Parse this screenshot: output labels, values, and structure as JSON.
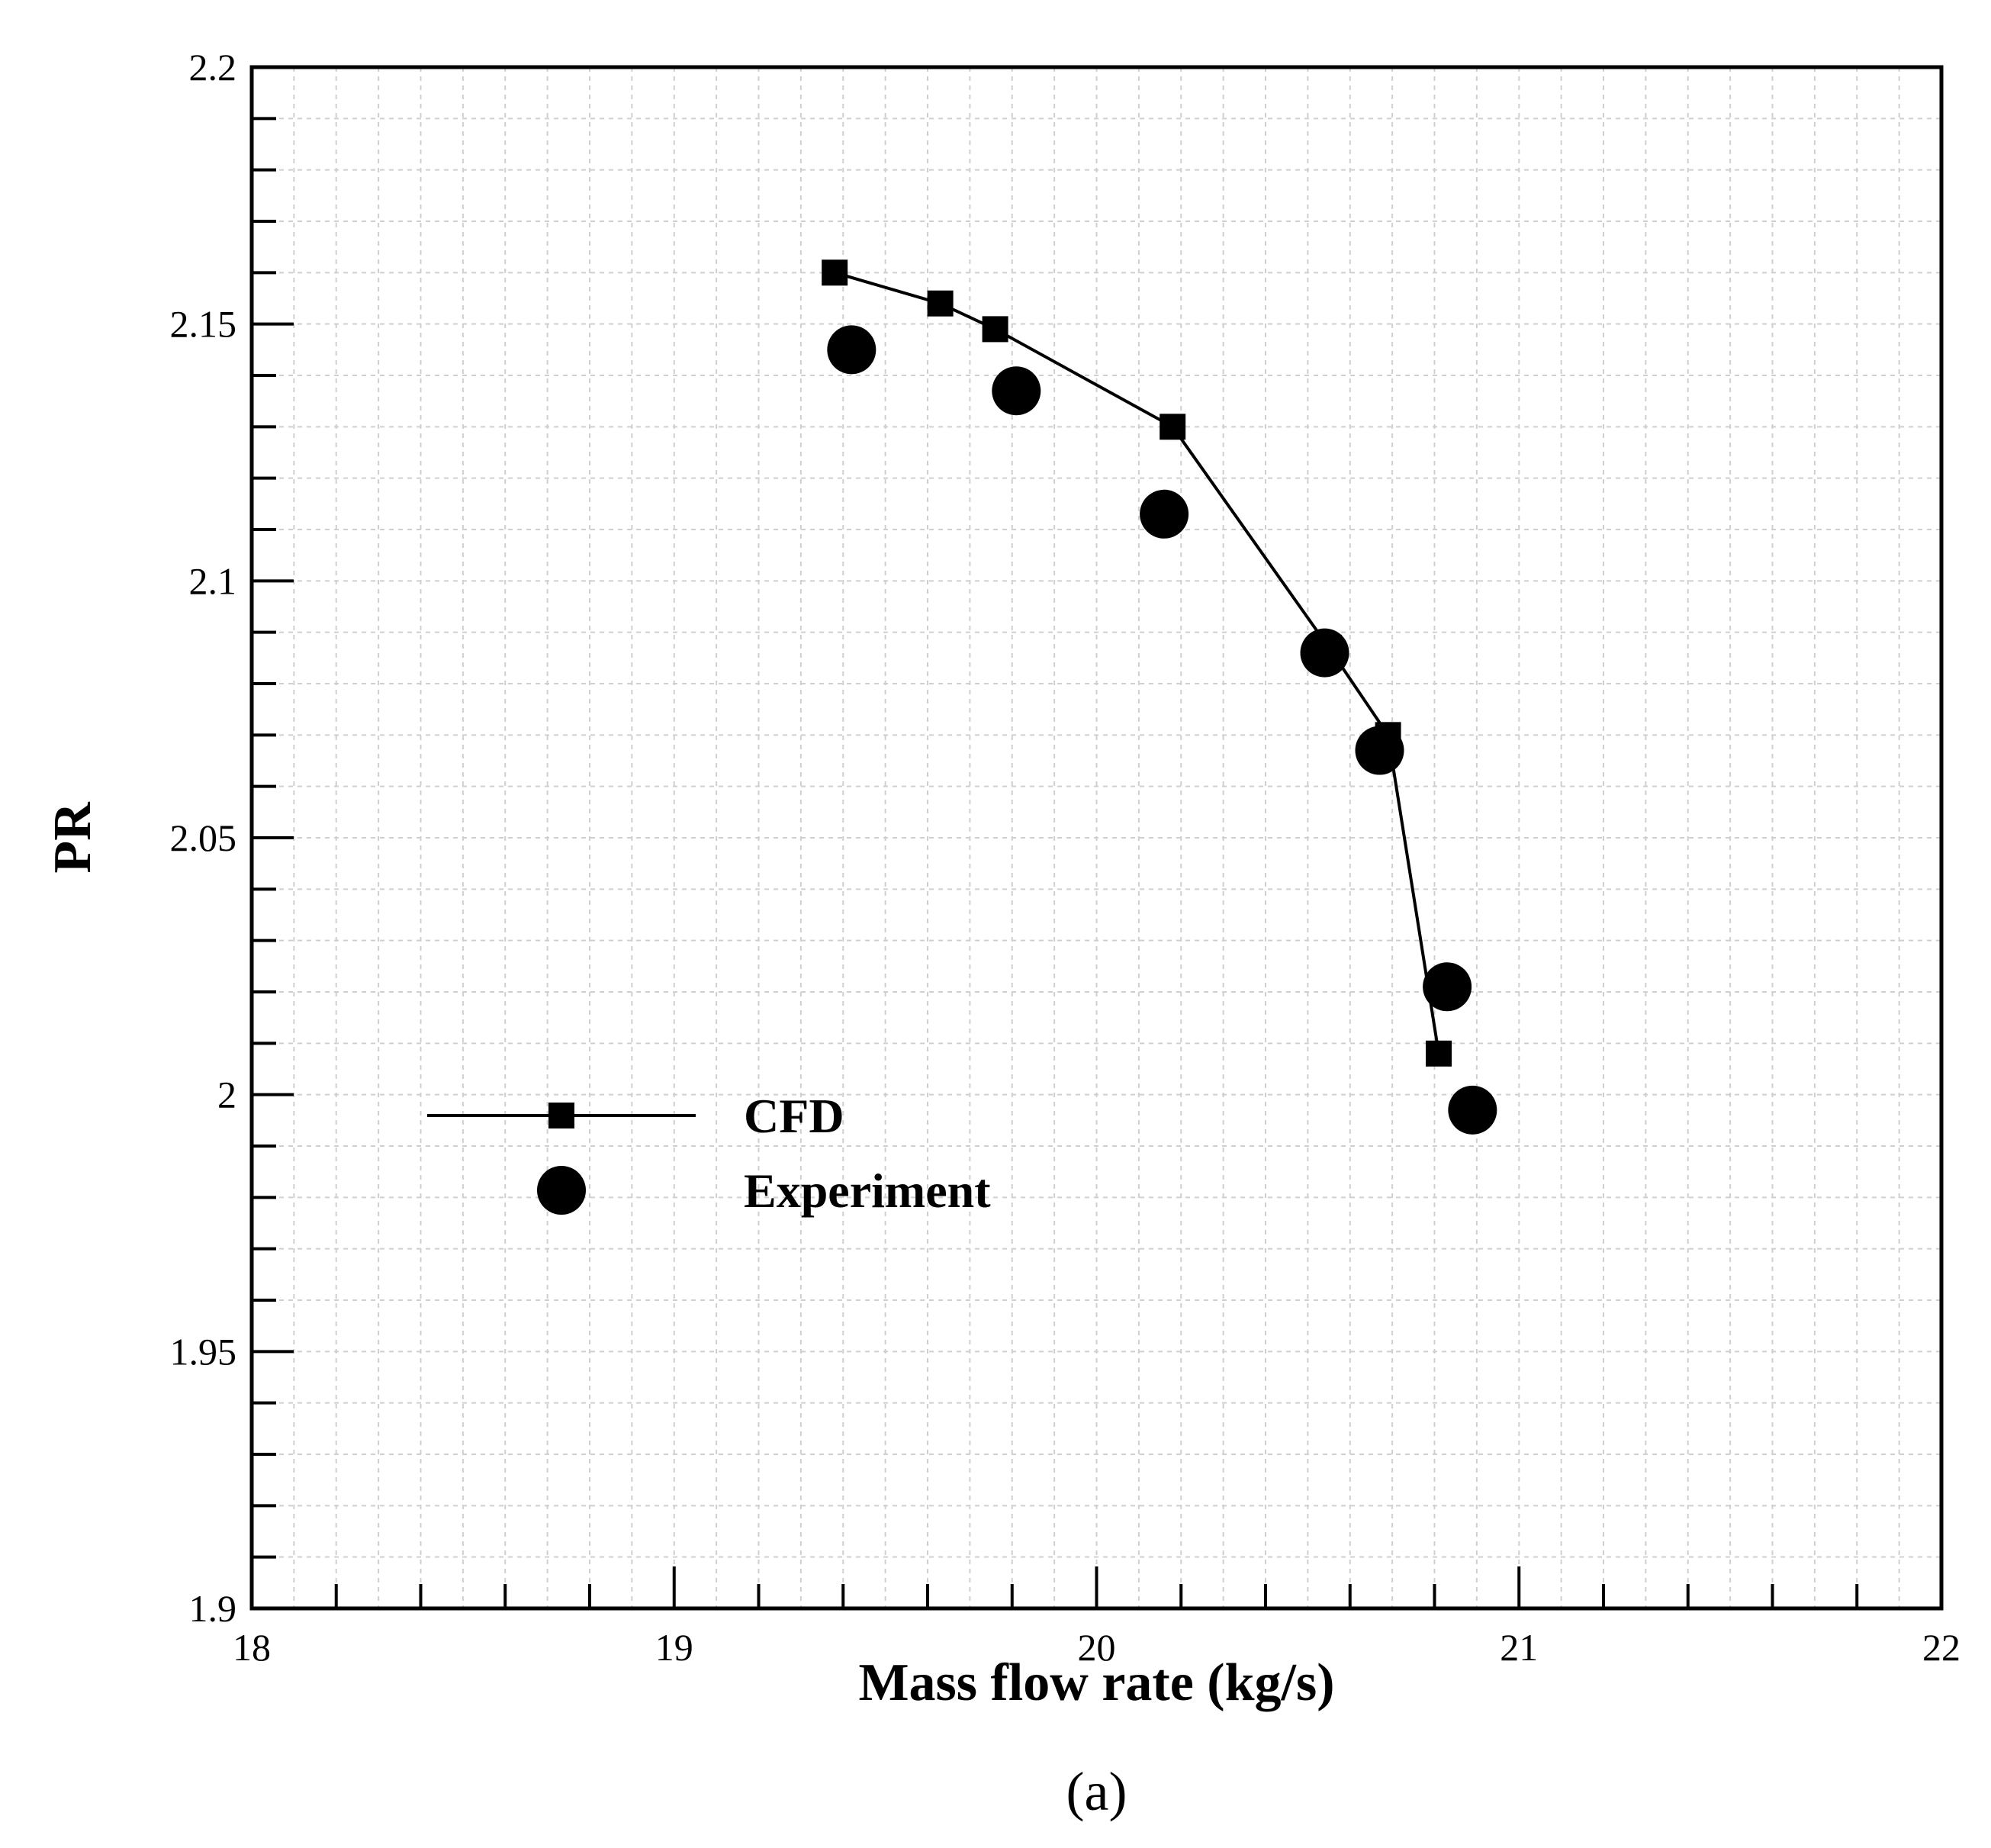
{
  "chart_data": {
    "type": "scatter",
    "xlabel": "Mass flow rate (kg/s)",
    "ylabel": "PR",
    "xlim": [
      18,
      22
    ],
    "ylim": [
      1.9,
      2.2
    ],
    "x_ticks": [
      "18",
      "19",
      "20",
      "21",
      "22"
    ],
    "y_ticks": [
      "1.9",
      "1.95",
      "2",
      "2.05",
      "2.1",
      "2.15",
      "2.2"
    ],
    "x_tick_values": [
      18,
      19,
      20,
      21,
      22
    ],
    "y_tick_values": [
      1.9,
      1.95,
      2.0,
      2.05,
      2.1,
      2.15,
      2.2
    ],
    "grid": true,
    "legend_position": "center-left",
    "panel_label": "(a)",
    "series": [
      {
        "name": "CFD",
        "style": "line-square",
        "x": [
          19.38,
          19.63,
          19.76,
          20.18,
          20.55,
          20.69,
          20.81
        ],
        "y": [
          2.16,
          2.154,
          2.149,
          2.13,
          2.087,
          2.07,
          2.008
        ]
      },
      {
        "name": "Experiment",
        "style": "circle",
        "x": [
          19.42,
          19.81,
          20.16,
          20.54,
          20.67,
          20.83,
          20.89
        ],
        "y": [
          2.145,
          2.137,
          2.113,
          2.086,
          2.067,
          2.021,
          1.997
        ]
      }
    ],
    "colors": {
      "axis": "#000000",
      "grid": "#cfcfcf",
      "marker": "#000000"
    }
  }
}
